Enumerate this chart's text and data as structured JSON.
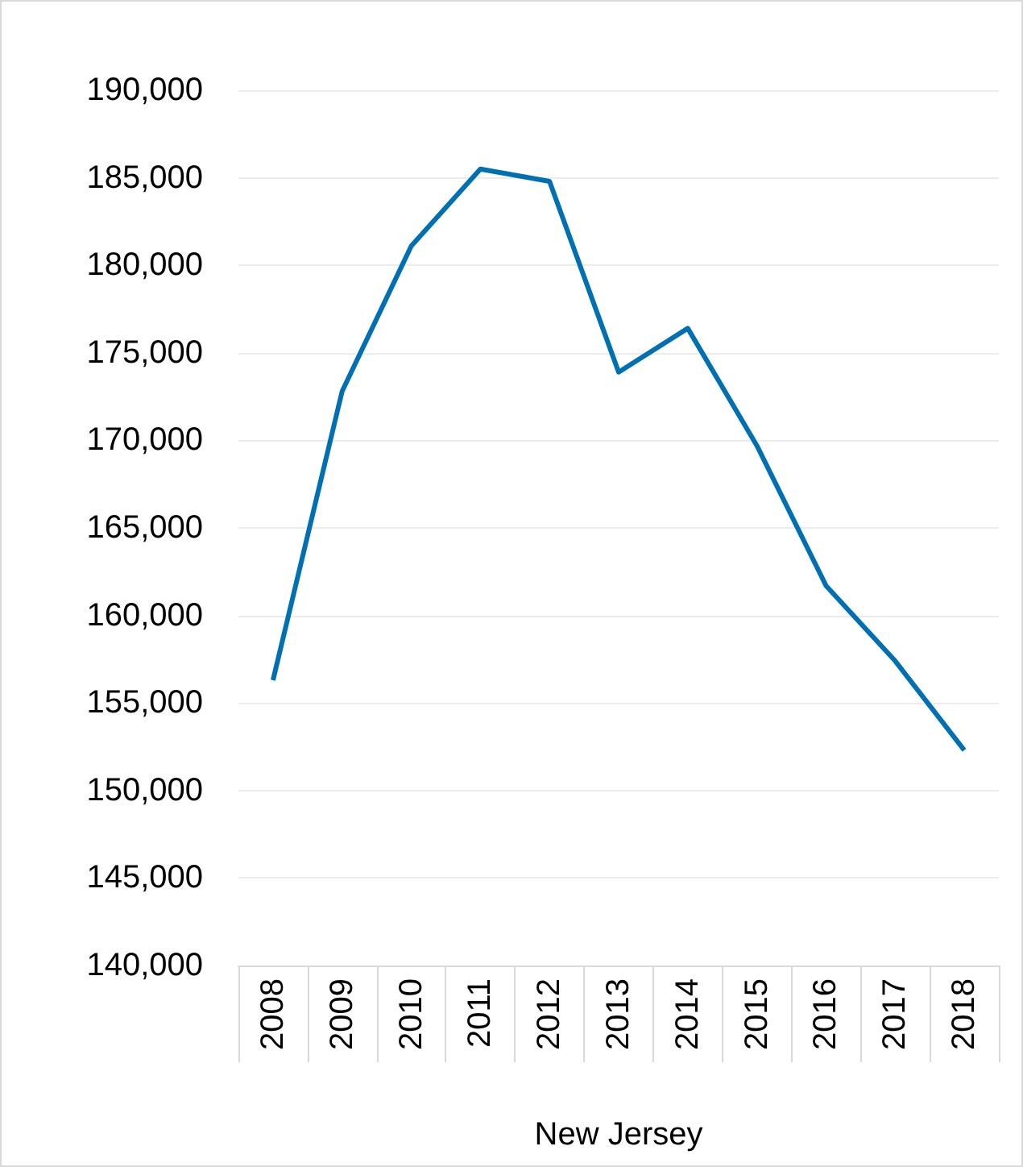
{
  "chart_data": {
    "type": "line",
    "xlabel": "New Jersey",
    "categories": [
      "2008",
      "2009",
      "2010",
      "2011",
      "2012",
      "2013",
      "2014",
      "2015",
      "2016",
      "2017",
      "2018"
    ],
    "series": [
      {
        "color": "#0070b3",
        "values": [
          156300,
          172800,
          181100,
          185500,
          184800,
          173900,
          176400,
          169700,
          161700,
          157400,
          152300
        ]
      }
    ],
    "ylim": [
      140000,
      190000
    ],
    "yticks": [
      {
        "value": 140000,
        "label": "140,000"
      },
      {
        "value": 145000,
        "label": "145,000"
      },
      {
        "value": 150000,
        "label": "150,000"
      },
      {
        "value": 155000,
        "label": "155,000"
      },
      {
        "value": 160000,
        "label": "160,000"
      },
      {
        "value": 165000,
        "label": "165,000"
      },
      {
        "value": 170000,
        "label": "170,000"
      },
      {
        "value": 175000,
        "label": "175,000"
      },
      {
        "value": 180000,
        "label": "180,000"
      },
      {
        "value": 185000,
        "label": "185,000"
      },
      {
        "value": 190000,
        "label": "190,000"
      }
    ],
    "grid": "y"
  }
}
